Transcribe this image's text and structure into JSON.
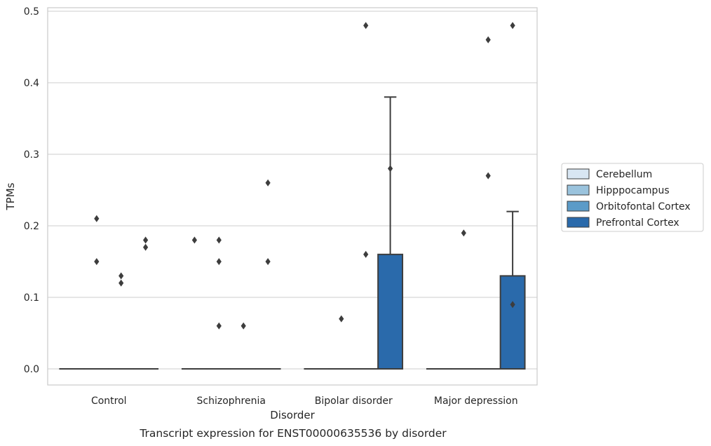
{
  "chart_data": {
    "type": "boxplot",
    "title": "",
    "caption": "Transcript expression for ENST00000635536 by disorder",
    "xlabel": "Disorder",
    "ylabel": "TPMs",
    "ylim": [
      -0.023,
      0.505
    ],
    "yticks": [
      0.0,
      0.1,
      0.2,
      0.3,
      0.4,
      0.5
    ],
    "ytick_labels": [
      "0.0",
      "0.1",
      "0.2",
      "0.3",
      "0.4",
      "0.5"
    ],
    "grid": "horizontal",
    "legend_position": "right",
    "categories": [
      "Control",
      "Schizophrenia",
      "Bipolar disorder",
      "Major depression"
    ],
    "series": [
      {
        "name": "Cerebellum",
        "color": "#d8e6f3",
        "boxes": [
          {
            "q1": 0,
            "median": 0,
            "q3": 0,
            "whislo": 0,
            "whishi": 0,
            "fliers": []
          },
          {
            "q1": 0,
            "median": 0,
            "q3": 0,
            "whislo": 0,
            "whishi": 0,
            "fliers": [
              0.18
            ]
          },
          {
            "q1": 0,
            "median": 0,
            "q3": 0,
            "whislo": 0,
            "whishi": 0,
            "fliers": []
          },
          {
            "q1": 0,
            "median": 0,
            "q3": 0,
            "whislo": 0,
            "whishi": 0,
            "fliers": []
          }
        ]
      },
      {
        "name": "Hipppocampus",
        "color": "#9ac3dd",
        "boxes": [
          {
            "q1": 0,
            "median": 0,
            "q3": 0,
            "whislo": 0,
            "whishi": 0,
            "fliers": [
              0.21,
              0.15
            ]
          },
          {
            "q1": 0,
            "median": 0,
            "q3": 0,
            "whislo": 0,
            "whishi": 0,
            "fliers": [
              0.18,
              0.15,
              0.06
            ]
          },
          {
            "q1": 0,
            "median": 0,
            "q3": 0,
            "whislo": 0,
            "whishi": 0,
            "fliers": [
              0.07
            ]
          },
          {
            "q1": 0,
            "median": 0,
            "q3": 0,
            "whislo": 0,
            "whishi": 0,
            "fliers": [
              0.19
            ]
          }
        ]
      },
      {
        "name": "Orbitofontal Cortex",
        "color": "#5b9bc8",
        "boxes": [
          {
            "q1": 0,
            "median": 0,
            "q3": 0,
            "whislo": 0,
            "whishi": 0,
            "fliers": [
              0.13,
              0.12
            ]
          },
          {
            "q1": 0,
            "median": 0,
            "q3": 0,
            "whislo": 0,
            "whishi": 0,
            "fliers": [
              0.06
            ]
          },
          {
            "q1": 0,
            "median": 0,
            "q3": 0,
            "whislo": 0,
            "whishi": 0,
            "fliers": [
              0.48,
              0.16
            ]
          },
          {
            "q1": 0,
            "median": 0,
            "q3": 0,
            "whislo": 0,
            "whishi": 0,
            "fliers": [
              0.46,
              0.27
            ]
          }
        ]
      },
      {
        "name": "Prefrontal Cortex",
        "color": "#2a6aab",
        "boxes": [
          {
            "q1": 0,
            "median": 0,
            "q3": 0,
            "whislo": 0,
            "whishi": 0,
            "fliers": [
              0.18,
              0.17
            ]
          },
          {
            "q1": 0,
            "median": 0,
            "q3": 0,
            "whislo": 0,
            "whishi": 0,
            "fliers": [
              0.26,
              0.15
            ]
          },
          {
            "q1": 0,
            "median": 0,
            "q3": 0.16,
            "whislo": 0,
            "whishi": 0.38,
            "fliers": [
              0.28
            ]
          },
          {
            "q1": 0,
            "median": 0,
            "q3": 0.13,
            "whislo": 0,
            "whishi": 0.22,
            "fliers": [
              0.09,
              0.48
            ]
          }
        ]
      }
    ]
  }
}
